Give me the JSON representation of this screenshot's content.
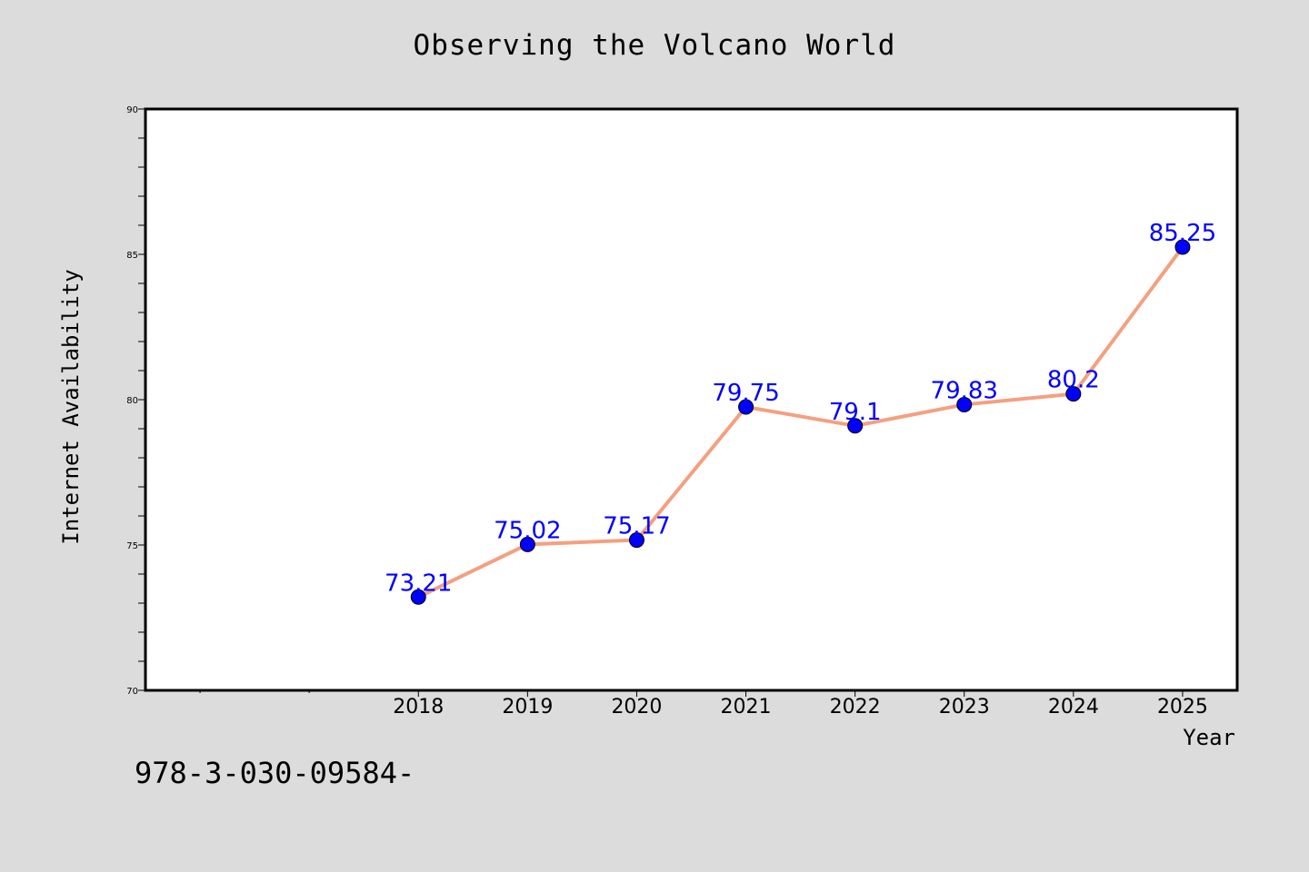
{
  "footer": {
    "text": "978-3-030-09584-"
  },
  "colors": {
    "background": "#dcdcdc",
    "plot_background": "#ffffff",
    "line": "#f4a07f",
    "marker": "#0000ff",
    "data_label": "#0000ff"
  },
  "chart_data": {
    "type": "line",
    "title": "Observing the Volcano World",
    "xlabel": "Year",
    "ylabel": "Internet Availability",
    "categories": [
      "2018",
      "2019",
      "2020",
      "2021",
      "2022",
      "2023",
      "2024",
      "2025"
    ],
    "series": [
      {
        "values": [
          73.21,
          75.02,
          75.17,
          79.75,
          79.1,
          79.83,
          80.2,
          85.25
        ],
        "data_labels": [
          "73.21",
          "75.02",
          "75.17",
          "79.75",
          "79.1",
          "79.83",
          "80.2",
          "85.25"
        ]
      }
    ],
    "ylim": [
      70,
      90
    ],
    "yticks": [
      "70",
      "75",
      "80",
      "85",
      "90"
    ],
    "xlim": [
      2015.5,
      2025.5
    ],
    "grid": false,
    "legend": "none"
  }
}
